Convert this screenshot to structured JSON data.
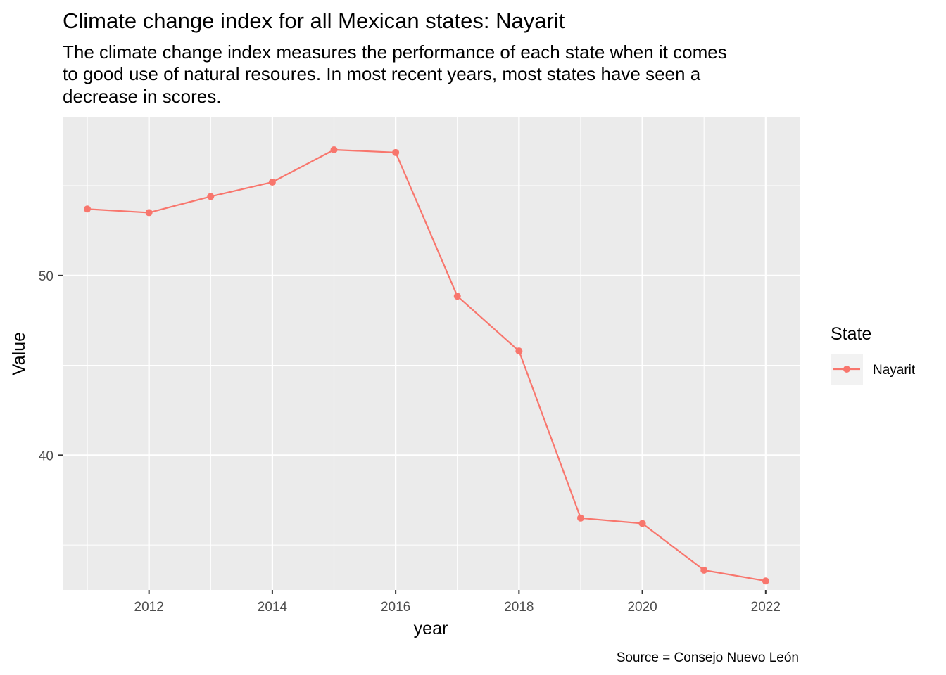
{
  "chart_data": {
    "type": "line",
    "title": "Climate change index for all Mexican states: Nayarit",
    "subtitle": [
      "The climate change index measures the performance of each state when it comes",
      "to good use of natural resoures. In most recent years, most states have seen a",
      "decrease in scores."
    ],
    "xlabel": "year",
    "ylabel": "Value",
    "caption": "Source = Consejo Nuevo León",
    "legend": {
      "title": "State",
      "position": "right"
    },
    "x_ticks": [
      2012,
      2014,
      2016,
      2018,
      2020,
      2022
    ],
    "x_tick_labels": [
      "2012",
      "2014",
      "2016",
      "2018",
      "2020",
      "2022"
    ],
    "y_ticks": [
      40,
      50
    ],
    "y_tick_labels": [
      "40",
      "50"
    ],
    "xlim": [
      2010.6,
      2022.55
    ],
    "ylim": [
      32.5,
      58.8
    ],
    "grid": true,
    "x": [
      2011,
      2012,
      2013,
      2014,
      2015,
      2016,
      2017,
      2018,
      2019,
      2020,
      2021,
      2022
    ],
    "series": [
      {
        "name": "Nayarit",
        "color": "#F8766D",
        "values": [
          53.7,
          53.5,
          54.4,
          55.2,
          57.0,
          56.85,
          48.85,
          45.8,
          36.5,
          36.2,
          33.6,
          33.0
        ]
      }
    ]
  }
}
